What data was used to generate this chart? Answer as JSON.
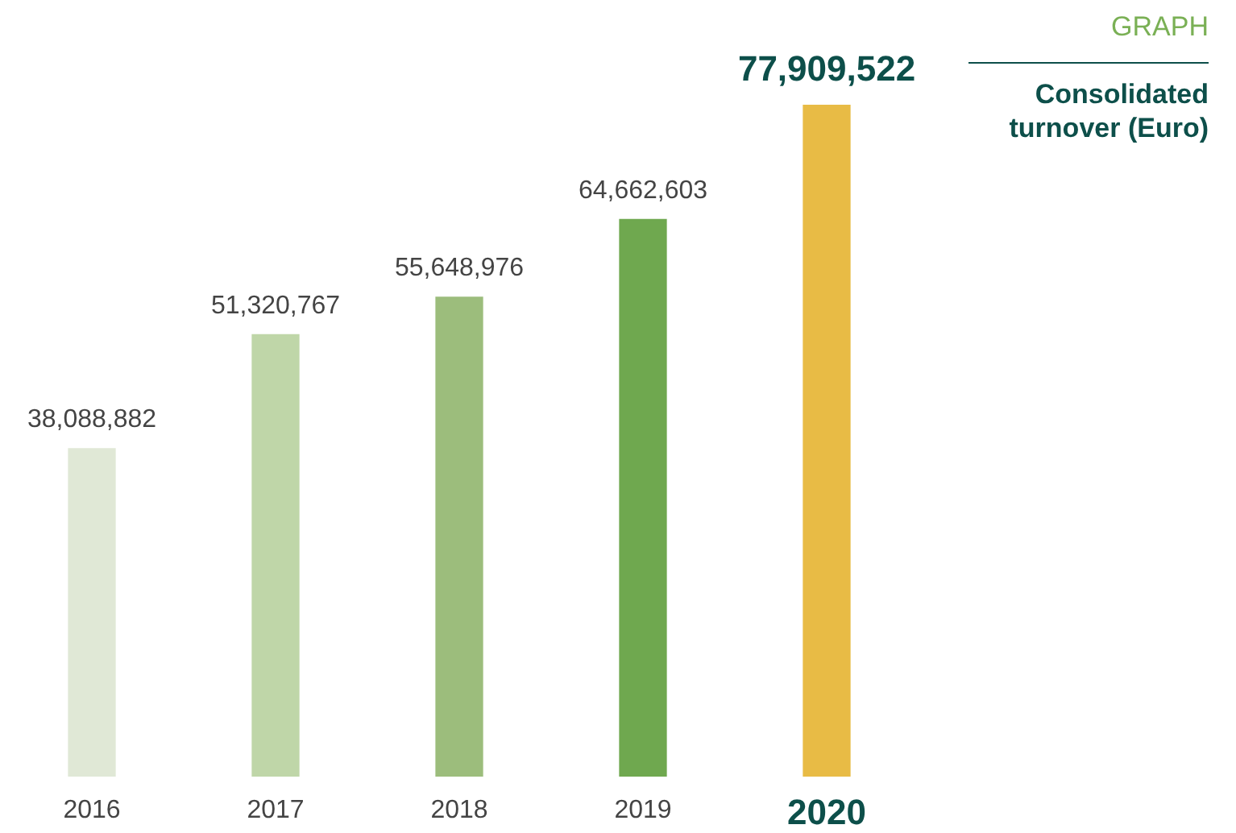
{
  "chart_data": {
    "type": "bar",
    "title": "Consolidated turnover (Euro)",
    "annotations": [
      "GRAPH"
    ],
    "categories": [
      "2016",
      "2017",
      "2018",
      "2019",
      "2020"
    ],
    "values": [
      38088882,
      51320767,
      55648976,
      64662603,
      77909522
    ],
    "colors": [
      "#e0e8d6",
      "#bfd6a8",
      "#9cbd7c",
      "#6fa84f",
      "#e8bb45"
    ],
    "value_labels": [
      "38,088,882",
      "51,320,767",
      "55,648,976",
      "64,662,603",
      "77,909,522"
    ],
    "grid": false,
    "legend": false
  }
}
